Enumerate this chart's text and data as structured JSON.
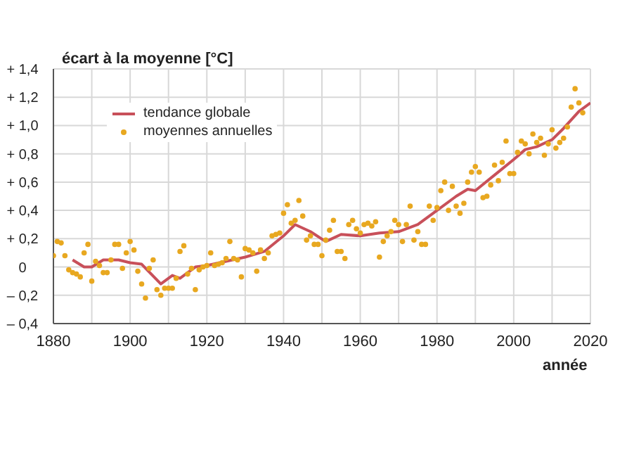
{
  "chart_data": {
    "type": "scatter",
    "ylabel": "écart à la moyenne [°C]",
    "xlabel": "année",
    "xlim": [
      1880,
      2020
    ],
    "xticks": [
      1880,
      {
        "value": 1890,
        "label": null
      },
      1900,
      {
        "value": 1910,
        "label": null
      },
      1920,
      {
        "value": 1930,
        "label": null
      },
      1940,
      {
        "value": 1950,
        "label": null
      },
      1960,
      {
        "value": 1970,
        "label": null
      },
      1980,
      {
        "value": 1990,
        "label": null
      },
      2000,
      {
        "value": 2010,
        "label": null
      },
      2020
    ],
    "ylim": [
      -0.4,
      1.4
    ],
    "yticks": [
      {
        "value": -0.4,
        "label": "– 0,4"
      },
      {
        "value": -0.2,
        "label": "– 0,2"
      },
      0,
      {
        "value": 0.2,
        "label": "+ 0,2"
      },
      {
        "value": 0.4,
        "label": "+ 0,4"
      },
      {
        "value": 0.6,
        "label": "+ 0,6"
      },
      {
        "value": 0.8,
        "label": "+ 0,8"
      },
      {
        "value": 1.0,
        "label": "+ 1,0"
      },
      {
        "value": 1.2,
        "label": "+ 1,2"
      },
      {
        "value": 1.4,
        "label": "+ 1,4"
      }
    ],
    "grid": true,
    "legend": "top left",
    "series": [
      {
        "name": "tendance globale",
        "type": "line",
        "color": "#c8505a",
        "line_style": "solid",
        "marker": "none",
        "x": [
          1885,
          1888,
          1890,
          1893,
          1897,
          1900,
          1903,
          1908,
          1911,
          1913,
          1917,
          1920,
          1925,
          1930,
          1935,
          1940,
          1943,
          1947,
          1951,
          1955,
          1960,
          1965,
          1970,
          1975,
          1980,
          1985,
          1988,
          1990,
          1995,
          2000,
          2003,
          2006,
          2010,
          2013,
          2017,
          2020
        ],
        "values": [
          0.05,
          0.0,
          0.0,
          0.05,
          0.05,
          0.03,
          0.02,
          -0.12,
          -0.06,
          -0.08,
          0.0,
          0.01,
          0.04,
          0.07,
          0.11,
          0.22,
          0.3,
          0.25,
          0.18,
          0.23,
          0.22,
          0.24,
          0.25,
          0.3,
          0.4,
          0.5,
          0.55,
          0.54,
          0.65,
          0.76,
          0.83,
          0.85,
          0.9,
          0.98,
          1.1,
          1.16
        ]
      },
      {
        "name": "moyennes annuelles",
        "color": "#e8a820",
        "marker": "circle",
        "x": [
          1880,
          1881,
          1882,
          1883,
          1884,
          1885,
          1886,
          1887,
          1888,
          1889,
          1890,
          1891,
          1892,
          1893,
          1894,
          1895,
          1896,
          1897,
          1898,
          1899,
          1900,
          1901,
          1902,
          1903,
          1904,
          1905,
          1906,
          1907,
          1908,
          1909,
          1910,
          1911,
          1912,
          1913,
          1914,
          1915,
          1916,
          1917,
          1918,
          1919,
          1920,
          1921,
          1922,
          1923,
          1924,
          1925,
          1926,
          1927,
          1928,
          1929,
          1930,
          1931,
          1932,
          1933,
          1934,
          1935,
          1936,
          1937,
          1938,
          1939,
          1940,
          1941,
          1942,
          1943,
          1944,
          1945,
          1946,
          1947,
          1948,
          1949,
          1950,
          1951,
          1952,
          1953,
          1954,
          1955,
          1956,
          1957,
          1958,
          1959,
          1960,
          1961,
          1962,
          1963,
          1964,
          1965,
          1966,
          1967,
          1968,
          1969,
          1970,
          1971,
          1972,
          1973,
          1974,
          1975,
          1976,
          1977,
          1978,
          1979,
          1980,
          1981,
          1982,
          1983,
          1984,
          1985,
          1986,
          1987,
          1988,
          1989,
          1990,
          1991,
          1992,
          1993,
          1994,
          1995,
          1996,
          1997,
          1998,
          1999,
          2000,
          2001,
          2002,
          2003,
          2004,
          2005,
          2006,
          2007,
          2008,
          2009,
          2010,
          2011,
          2012,
          2013,
          2014,
          2015,
          2016,
          2017,
          2018
        ],
        "values": [
          0.08,
          0.18,
          0.17,
          0.08,
          -0.02,
          -0.04,
          -0.05,
          -0.07,
          0.1,
          0.16,
          -0.1,
          0.04,
          0.01,
          -0.04,
          -0.04,
          0.05,
          0.16,
          0.16,
          -0.01,
          0.1,
          0.18,
          0.12,
          -0.03,
          -0.12,
          -0.22,
          -0.01,
          0.05,
          -0.16,
          -0.2,
          -0.15,
          -0.15,
          -0.15,
          -0.08,
          0.11,
          0.15,
          -0.05,
          -0.01,
          -0.16,
          -0.02,
          0.0,
          0.01,
          0.1,
          0.01,
          0.02,
          0.03,
          0.06,
          0.18,
          0.06,
          0.05,
          -0.07,
          0.13,
          0.12,
          0.1,
          -0.03,
          0.12,
          0.06,
          0.1,
          0.22,
          0.23,
          0.24,
          0.38,
          0.44,
          0.31,
          0.33,
          0.47,
          0.36,
          0.19,
          0.22,
          0.16,
          0.16,
          0.08,
          0.19,
          0.26,
          0.33,
          0.11,
          0.11,
          0.06,
          0.3,
          0.33,
          0.27,
          0.24,
          0.3,
          0.31,
          0.29,
          0.32,
          0.07,
          0.18,
          0.22,
          0.25,
          0.33,
          0.3,
          0.18,
          0.3,
          0.43,
          0.19,
          0.25,
          0.16,
          0.16,
          0.43,
          0.33,
          0.42,
          0.54,
          0.6,
          0.4,
          0.57,
          0.43,
          0.38,
          0.45,
          0.6,
          0.67,
          0.71,
          0.67,
          0.49,
          0.5,
          0.58,
          0.72,
          0.61,
          0.74,
          0.89,
          0.66,
          0.66,
          0.81,
          0.89,
          0.87,
          0.8,
          0.94,
          0.88,
          0.91,
          0.79,
          0.87,
          0.97,
          0.84,
          0.88,
          0.91,
          0.99,
          1.13,
          1.26,
          1.16,
          1.09
        ]
      }
    ]
  }
}
